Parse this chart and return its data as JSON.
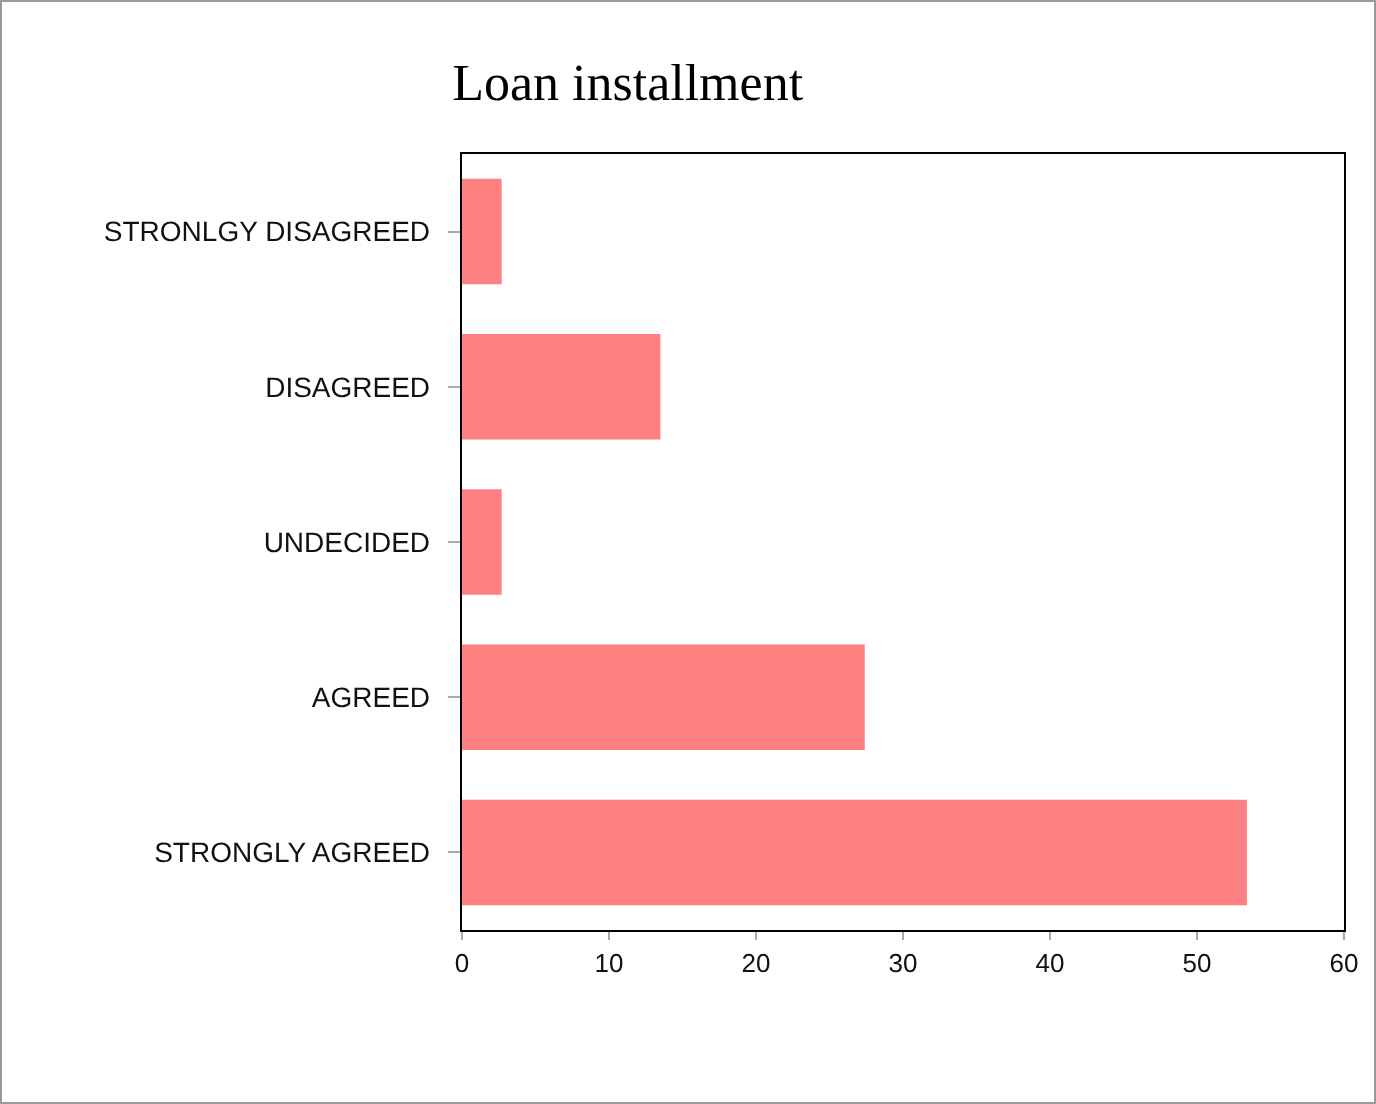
{
  "chart_data": {
    "type": "bar",
    "title": "Loan installment",
    "orientation": "horizontal",
    "categories": [
      "STRONLGY DISAGREED",
      "DISAGREED",
      "UNDECIDED",
      "AGREED",
      "STRONGLY AGREED"
    ],
    "values": [
      2.7,
      13.5,
      2.7,
      27.4,
      53.4
    ],
    "color": "#ff8080",
    "xlim": [
      0,
      60
    ],
    "xticks": [
      0,
      10,
      20,
      30,
      40,
      50,
      60
    ]
  }
}
